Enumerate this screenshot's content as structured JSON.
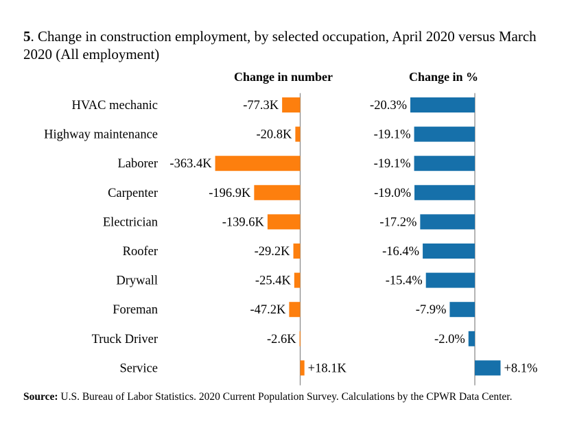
{
  "title": {
    "number": "5",
    "text": ". Change in construction employment, by selected occupation, April 2020 versus March 2020 (All employment)"
  },
  "source": {
    "label": "Source:",
    "text": " U.S. Bureau of Labor Statistics. 2020 Current Population Survey. Calculations by the CPWR Data Center."
  },
  "colors": {
    "number_bar": "#fd7f0e",
    "percent_bar": "#1670aa",
    "axis": "#8c8c8c"
  },
  "chart_data": [
    {
      "type": "bar",
      "orientation": "horizontal",
      "title": "Change in number",
      "categories": [
        "HVAC mechanic",
        "Highway maintenance",
        "Laborer",
        "Carpenter",
        "Electrician",
        "Roofer",
        "Drywall",
        "Foreman",
        "Truck Driver",
        "Service"
      ],
      "values": [
        -77.3,
        -20.8,
        -363.4,
        -196.9,
        -139.6,
        -29.2,
        -25.4,
        -47.2,
        -2.6,
        18.1
      ],
      "labels": [
        "-77.3K",
        "-20.8K",
        "-363.4K",
        "-196.9K",
        "-139.6K",
        "-29.2K",
        "-25.4K",
        "-47.2K",
        "-2.6K",
        "+18.1K"
      ],
      "unit": "thousands",
      "xlabel": "",
      "ylabel": "",
      "grid": false
    },
    {
      "type": "bar",
      "orientation": "horizontal",
      "title": "Change in %",
      "categories": [
        "HVAC mechanic",
        "Highway maintenance",
        "Laborer",
        "Carpenter",
        "Electrician",
        "Roofer",
        "Drywall",
        "Foreman",
        "Truck Driver",
        "Service"
      ],
      "values": [
        -20.3,
        -19.1,
        -19.1,
        -19.0,
        -17.2,
        -16.4,
        -15.4,
        -7.9,
        -2.0,
        8.1
      ],
      "labels": [
        "-20.3%",
        "-19.1%",
        "-19.1%",
        "-19.0%",
        "-17.2%",
        "-16.4%",
        "-15.4%",
        "-7.9%",
        "-2.0%",
        "+8.1%"
      ],
      "unit": "percent",
      "xlabel": "",
      "ylabel": "",
      "grid": false
    }
  ]
}
